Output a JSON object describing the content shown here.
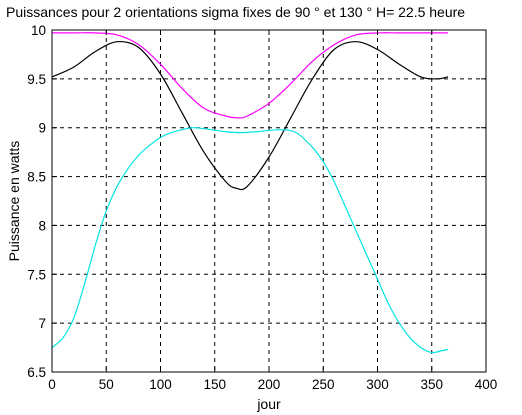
{
  "chart_data": {
    "type": "line",
    "title": "Puissances pour 2 orientations sigma fixes de 90 ° et 130 ° H= 22.5 heure",
    "xlabel": "jour",
    "ylabel": "Puissance en watts",
    "xlim": [
      0,
      400
    ],
    "ylim": [
      6.5,
      10
    ],
    "xticks": [
      0,
      50,
      100,
      150,
      200,
      250,
      300,
      350,
      400
    ],
    "yticks": [
      6.5,
      7,
      7.5,
      8,
      8.5,
      9,
      9.5,
      10
    ],
    "x_tick_labels": [
      "0",
      "50",
      "100",
      "150",
      "200",
      "250",
      "300",
      "350",
      "400"
    ],
    "y_tick_labels": [
      "6.5",
      "7",
      "7.5",
      "8",
      "8.5",
      "9",
      "9.5",
      "10"
    ],
    "grid": true,
    "series": [
      {
        "color": "#ff00ff",
        "x": [
          0,
          20,
          40,
          60,
          80,
          100,
          120,
          140,
          160,
          172,
          180,
          200,
          220,
          240,
          260,
          280,
          300,
          320,
          340,
          365
        ],
        "y": [
          9.97,
          9.97,
          9.97,
          9.95,
          9.85,
          9.65,
          9.4,
          9.2,
          9.12,
          9.1,
          9.12,
          9.25,
          9.45,
          9.68,
          9.85,
          9.95,
          9.97,
          9.97,
          9.97,
          9.97
        ]
      },
      {
        "color": "#000000",
        "x": [
          0,
          20,
          40,
          60,
          80,
          100,
          120,
          140,
          160,
          170,
          180,
          200,
          220,
          240,
          260,
          280,
          300,
          320,
          340,
          355,
          365
        ],
        "y": [
          9.52,
          9.62,
          9.78,
          9.88,
          9.82,
          9.55,
          9.15,
          8.75,
          8.45,
          8.38,
          8.4,
          8.7,
          9.1,
          9.5,
          9.8,
          9.88,
          9.8,
          9.65,
          9.52,
          9.5,
          9.52
        ]
      },
      {
        "color": "#00e5e5",
        "x": [
          0,
          10,
          20,
          30,
          40,
          50,
          60,
          70,
          80,
          90,
          100,
          110,
          120,
          130,
          140,
          160,
          175,
          190,
          210,
          225,
          240,
          250,
          260,
          270,
          280,
          290,
          300,
          310,
          320,
          330,
          340,
          350,
          360,
          365
        ],
        "y": [
          6.75,
          6.85,
          7.05,
          7.4,
          7.8,
          8.15,
          8.4,
          8.58,
          8.72,
          8.82,
          8.9,
          8.95,
          8.98,
          9.0,
          8.99,
          8.96,
          8.95,
          8.96,
          8.98,
          8.95,
          8.8,
          8.65,
          8.45,
          8.2,
          7.95,
          7.7,
          7.45,
          7.2,
          7.0,
          6.85,
          6.75,
          6.7,
          6.72,
          6.73
        ]
      }
    ]
  }
}
